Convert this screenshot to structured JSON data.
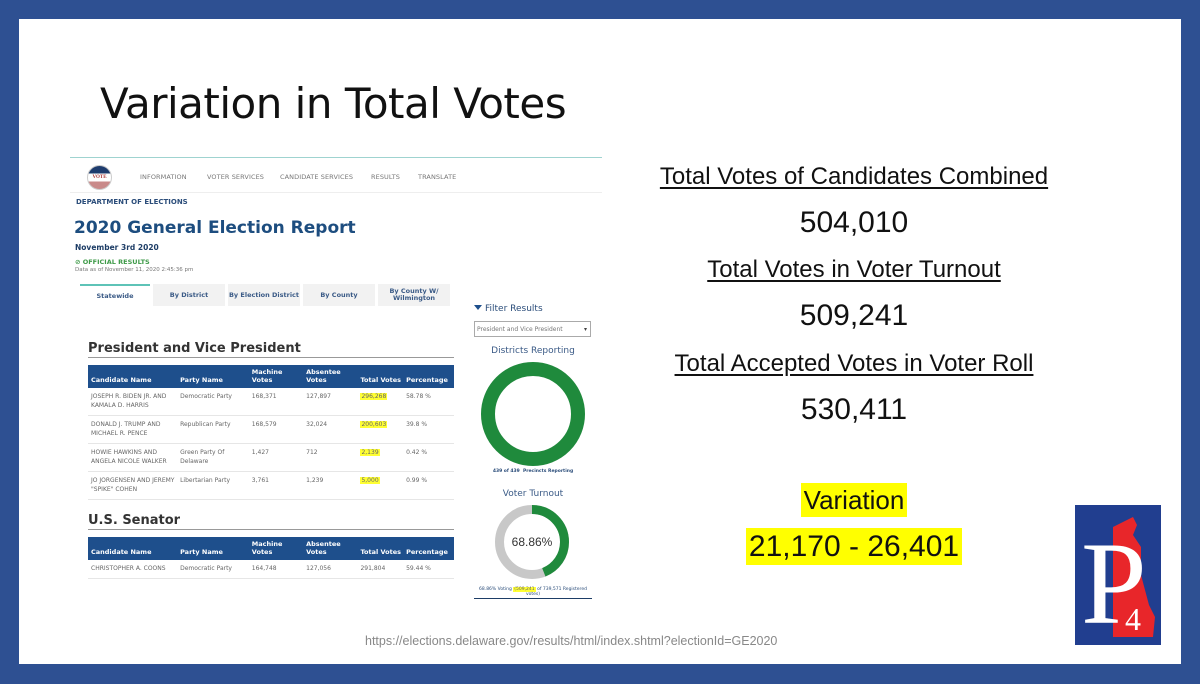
{
  "slide": {
    "title": "Variation in Total Votes",
    "source_url": "https://elections.delaware.gov/results/html/index.shtml?electionId=GE2020",
    "colors": {
      "frame": "#2e5092",
      "highlight": "#ffff00",
      "logo_blue": "#213e8f",
      "logo_red": "#e8262a"
    }
  },
  "website": {
    "logo_text": "VOTE",
    "nav": [
      "INFORMATION",
      "VOTER SERVICES",
      "CANDIDATE SERVICES",
      "RESULTS",
      "TRANSLATE"
    ],
    "department": "DEPARTMENT OF ELECTIONS",
    "report_title": "2020 General Election Report",
    "report_date": "November 3rd 2020",
    "official_results": "⊘ OFFICIAL RESULTS",
    "data_as_of": "Data as of November 11, 2020 2:45:36 pm",
    "tabs": [
      {
        "label": "Statewide",
        "active": true
      },
      {
        "label": "By District",
        "active": false
      },
      {
        "label": "By Election District",
        "active": false
      },
      {
        "label": "By County",
        "active": false
      },
      {
        "label": "By County W/ Wilmington",
        "active": false
      }
    ],
    "columns": [
      "Candidate Name",
      "Party Name",
      "Machine Votes",
      "Absentee Votes",
      "Total Votes",
      "Percentage"
    ],
    "president": {
      "title": "President and Vice President",
      "rows": [
        {
          "candidate": "JOSEPH R. BIDEN JR. AND KAMALA D. HARRIS",
          "party": "Democratic Party",
          "machine": "168,371",
          "absentee": "127,897",
          "total": "296,268",
          "pct": "58.78 %",
          "highlight": true
        },
        {
          "candidate": "DONALD J. TRUMP AND MICHAEL R. PENCE",
          "party": "Republican Party",
          "machine": "168,579",
          "absentee": "32,024",
          "total": "200,603",
          "pct": "39.8 %",
          "highlight": true
        },
        {
          "candidate": "HOWIE HAWKINS AND ANGELA NICOLE WALKER",
          "party": "Green Party Of Delaware",
          "machine": "1,427",
          "absentee": "712",
          "total": "2,139",
          "pct": "0.42 %",
          "highlight": true
        },
        {
          "candidate": "JO JORGENSEN AND JEREMY \"SPIKE\" COHEN",
          "party": "Libertarian Party",
          "machine": "3,761",
          "absentee": "1,239",
          "total": "5,000",
          "pct": "0.99 %",
          "highlight": true
        }
      ]
    },
    "senator": {
      "title": "U.S. Senator",
      "rows": [
        {
          "candidate": "CHRISTOPHER A. COONS",
          "party": "Democratic Party",
          "machine": "164,748",
          "absentee": "127,056",
          "total": "291,804",
          "pct": "59.44 %",
          "highlight": false
        }
      ]
    },
    "filter": {
      "label": "Filter Results",
      "selected": "President and Vice President"
    },
    "districts_reporting": {
      "title": "Districts Reporting",
      "fraction": 1.0,
      "caption_count": "439 of 439",
      "caption_label": "Precincts Reporting",
      "color": "#1f8a3c"
    },
    "voter_turnout": {
      "title": "Voter Turnout",
      "center_label": "68.86%",
      "fraction": 0.6886,
      "caption_prefix": "68.86% Voting",
      "caption_highlight": "(509,241",
      "caption_suffix": "of 739,571 Registered votes)",
      "color_fill": "#1f8a3c",
      "color_track": "#c8c8c8"
    }
  },
  "stats": [
    {
      "label": "Total Votes of Candidates Combined",
      "value": "504,010"
    },
    {
      "label": "Total Votes in Voter Turnout",
      "value": "509,241"
    },
    {
      "label": "Total Accepted Votes in Voter Roll",
      "value": "530,411"
    }
  ],
  "variation": {
    "label": "Variation",
    "value": "21,170 - 26,401"
  },
  "logo": {
    "letter": "P",
    "number": "4"
  }
}
